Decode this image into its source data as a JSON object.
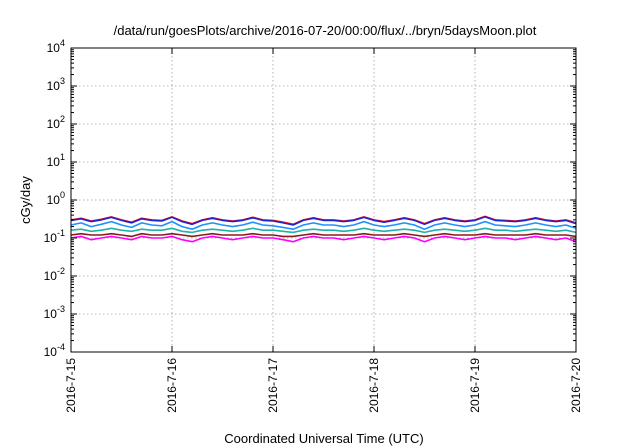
{
  "chart_data": {
    "type": "line",
    "title": "/data/run/goesPlots/archive/2016-07-20/00:00/flux/../bryn/5daysMoon.plot",
    "xlabel": "Coordinated Universal Time (UTC)",
    "ylabel": "cGy/day",
    "yscale": "log",
    "ylim": [
      0.0001,
      10000
    ],
    "xlim": [
      "2016-07-15",
      "2016-07-20"
    ],
    "x_ticks": [
      "2016-7-15",
      "2016-7-16",
      "2016-7-17",
      "2016-7-18",
      "2016-7-19",
      "2016-7-20"
    ],
    "y_ticks": [
      {
        "base": "10",
        "exp": "-4",
        "value": 0.0001
      },
      {
        "base": "10",
        "exp": "-3",
        "value": 0.001
      },
      {
        "base": "10",
        "exp": "-2",
        "value": 0.01
      },
      {
        "base": "10",
        "exp": "-1",
        "value": 0.1
      },
      {
        "base": "10",
        "exp": "0",
        "value": 1
      },
      {
        "base": "10",
        "exp": "1",
        "value": 10
      },
      {
        "base": "10",
        "exp": "2",
        "value": 100
      },
      {
        "base": "10",
        "exp": "3",
        "value": 1000
      },
      {
        "base": "10",
        "exp": "4",
        "value": 10000
      }
    ],
    "grid": true,
    "legend": "none",
    "series": [
      {
        "color": "#ff00ff",
        "approx_level": 0.1,
        "values": [
          0.1,
          0.11,
          0.09,
          0.1,
          0.11,
          0.1,
          0.09,
          0.11,
          0.1,
          0.1,
          0.11,
          0.09,
          0.08,
          0.1,
          0.11,
          0.1,
          0.09,
          0.1,
          0.11,
          0.1,
          0.1,
          0.09,
          0.08,
          0.1,
          0.11,
          0.1,
          0.1,
          0.09,
          0.1,
          0.11,
          0.1,
          0.09,
          0.1,
          0.11,
          0.1,
          0.08,
          0.1,
          0.11,
          0.1,
          0.09,
          0.1,
          0.11,
          0.1,
          0.1,
          0.09,
          0.1,
          0.11,
          0.1,
          0.09,
          0.1,
          0.08
        ]
      },
      {
        "color": "#8b1a1a",
        "approx_level": 0.12,
        "values": [
          0.12,
          0.13,
          0.12,
          0.12,
          0.13,
          0.12,
          0.11,
          0.13,
          0.12,
          0.12,
          0.13,
          0.12,
          0.11,
          0.12,
          0.13,
          0.12,
          0.12,
          0.12,
          0.13,
          0.12,
          0.12,
          0.11,
          0.11,
          0.12,
          0.13,
          0.12,
          0.12,
          0.12,
          0.12,
          0.13,
          0.12,
          0.12,
          0.12,
          0.13,
          0.12,
          0.11,
          0.12,
          0.13,
          0.12,
          0.12,
          0.12,
          0.13,
          0.12,
          0.12,
          0.12,
          0.12,
          0.13,
          0.12,
          0.12,
          0.12,
          0.11
        ]
      },
      {
        "color": "#20b2aa",
        "approx_level": 0.16,
        "values": [
          0.16,
          0.17,
          0.15,
          0.16,
          0.18,
          0.16,
          0.15,
          0.17,
          0.16,
          0.16,
          0.18,
          0.15,
          0.14,
          0.16,
          0.17,
          0.16,
          0.15,
          0.16,
          0.18,
          0.16,
          0.16,
          0.15,
          0.14,
          0.16,
          0.17,
          0.16,
          0.16,
          0.15,
          0.16,
          0.18,
          0.16,
          0.15,
          0.16,
          0.17,
          0.16,
          0.14,
          0.16,
          0.17,
          0.16,
          0.15,
          0.16,
          0.18,
          0.16,
          0.16,
          0.15,
          0.16,
          0.17,
          0.16,
          0.15,
          0.16,
          0.14
        ]
      },
      {
        "color": "#1e90ff",
        "approx_level": 0.22,
        "values": [
          0.22,
          0.25,
          0.2,
          0.23,
          0.27,
          0.22,
          0.19,
          0.25,
          0.22,
          0.21,
          0.27,
          0.2,
          0.17,
          0.22,
          0.25,
          0.22,
          0.2,
          0.22,
          0.26,
          0.22,
          0.21,
          0.19,
          0.17,
          0.22,
          0.25,
          0.22,
          0.22,
          0.2,
          0.22,
          0.27,
          0.22,
          0.2,
          0.22,
          0.25,
          0.22,
          0.17,
          0.22,
          0.25,
          0.22,
          0.2,
          0.22,
          0.27,
          0.22,
          0.21,
          0.2,
          0.22,
          0.25,
          0.22,
          0.2,
          0.22,
          0.18
        ]
      },
      {
        "color": "#ff0000",
        "approx_level": 0.3,
        "values": [
          0.3,
          0.33,
          0.28,
          0.31,
          0.36,
          0.3,
          0.26,
          0.33,
          0.3,
          0.29,
          0.36,
          0.28,
          0.24,
          0.3,
          0.34,
          0.3,
          0.28,
          0.3,
          0.35,
          0.3,
          0.29,
          0.26,
          0.23,
          0.3,
          0.34,
          0.3,
          0.3,
          0.28,
          0.3,
          0.36,
          0.3,
          0.27,
          0.3,
          0.34,
          0.3,
          0.24,
          0.3,
          0.34,
          0.3,
          0.28,
          0.3,
          0.37,
          0.3,
          0.29,
          0.28,
          0.3,
          0.34,
          0.3,
          0.28,
          0.3,
          0.25
        ]
      },
      {
        "color": "#2222cc",
        "approx_level": 0.29,
        "values": [
          0.29,
          0.32,
          0.27,
          0.3,
          0.35,
          0.29,
          0.25,
          0.32,
          0.29,
          0.28,
          0.35,
          0.27,
          0.23,
          0.29,
          0.33,
          0.29,
          0.27,
          0.29,
          0.34,
          0.29,
          0.28,
          0.25,
          0.22,
          0.29,
          0.33,
          0.29,
          0.29,
          0.27,
          0.29,
          0.35,
          0.29,
          0.26,
          0.29,
          0.33,
          0.29,
          0.23,
          0.29,
          0.33,
          0.29,
          0.27,
          0.29,
          0.36,
          0.29,
          0.28,
          0.27,
          0.29,
          0.33,
          0.29,
          0.27,
          0.29,
          0.24
        ]
      }
    ]
  }
}
